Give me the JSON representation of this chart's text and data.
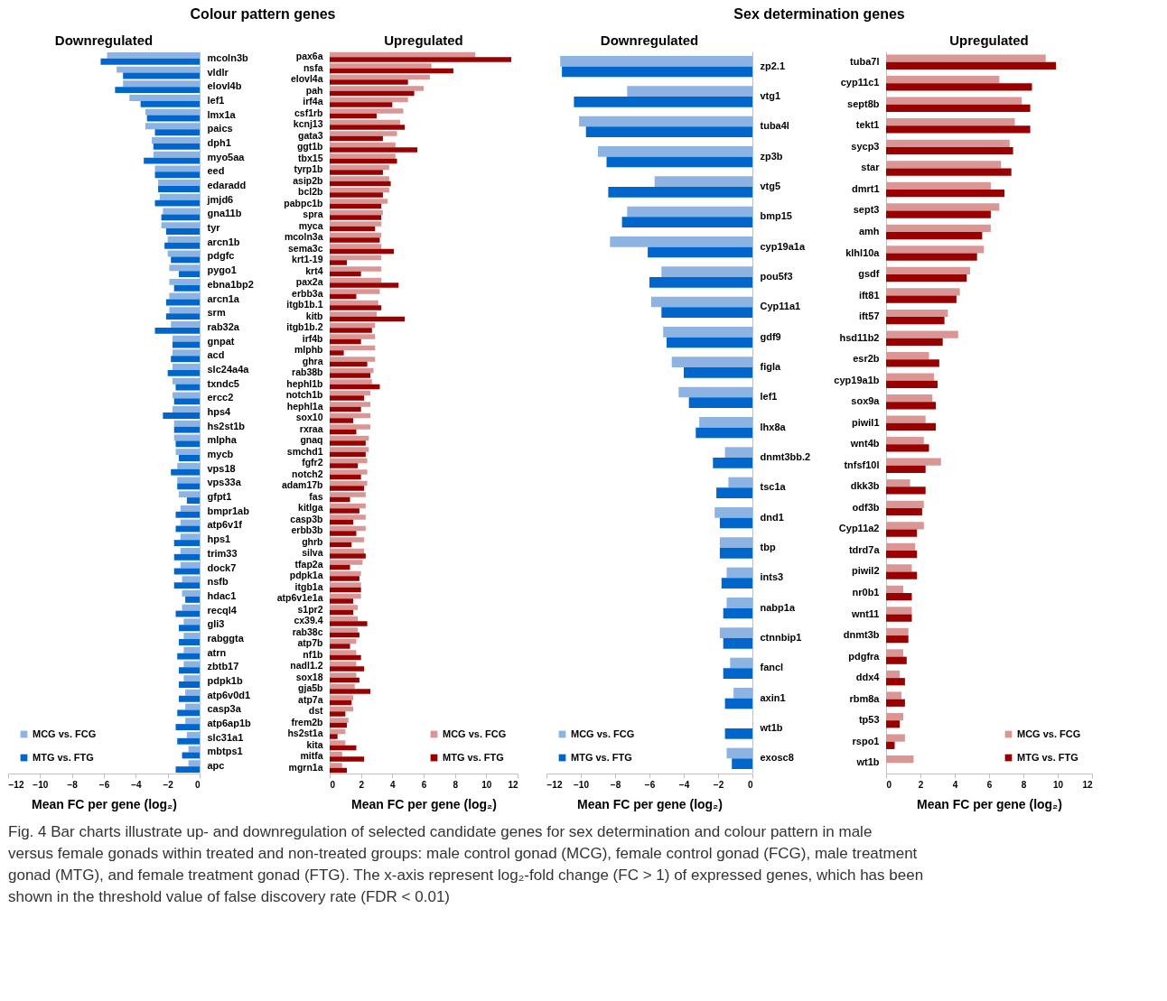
{
  "chart_data": [
    {
      "type": "bar",
      "orientation": "horizontal",
      "title": "Downregulated",
      "xlabel": "Mean FC per gene (log₂)",
      "annotations": [
        "Colour pattern genes"
      ],
      "legend": "bottom left",
      "xlim": [
        -12,
        0
      ],
      "xticks": [
        -12,
        -10,
        -8,
        -6,
        -4,
        -2,
        0
      ],
      "categories": [
        "mcoln3b",
        "vldlr",
        "elovl4b",
        "lef1",
        "lmx1a",
        "paics",
        "dph1",
        "myo5aa",
        "eed",
        "edaradd",
        "jmjd6",
        "gna11b",
        "tyr",
        "arcn1b",
        "pdgfc",
        "pygo1",
        "ebna1bp2",
        "arcn1a",
        "srm",
        "rab32a",
        "gnpat",
        "acd",
        "slc24a4a",
        "txndc5",
        "ercc2",
        "hps4",
        "hs2st1b",
        "mlpha",
        "mycb",
        "vps18",
        "vps33a",
        "gfpt1",
        "bmpr1ab",
        "atp6v1f",
        "hps1",
        "trim33",
        "dock7",
        "nsfb",
        "hdac1",
        "recql4",
        "gli3",
        "rabggta",
        "atrn",
        "zbtb17",
        "pdpk1b",
        "atp6v0d1",
        "casp3a",
        "atp6ap1b",
        "slc31a1",
        "mbtps1",
        "apc"
      ],
      "series": [
        {
          "name": "MCG vs. FCG",
          "color": "#8db3e2",
          "values": [
            -5.8,
            -5.2,
            -4.8,
            -4.4,
            -3.4,
            -3.4,
            -3.0,
            -2.9,
            -2.8,
            -2.6,
            -2.5,
            -2.3,
            -2.4,
            -2.0,
            -2.0,
            -1.9,
            -1.9,
            -1.9,
            -1.9,
            -1.8,
            -1.7,
            -1.7,
            -1.7,
            -1.7,
            -1.7,
            -1.7,
            -1.6,
            -1.6,
            -1.5,
            -1.4,
            -1.4,
            -1.3,
            -1.2,
            -1.2,
            -1.2,
            -1.2,
            -1.2,
            -1.1,
            -1.1,
            -1.1,
            -1.0,
            -1.0,
            -1.0,
            -1.0,
            -1.0,
            -0.9,
            -0.9,
            -0.9,
            -0.8,
            -0.7,
            -0.7
          ]
        },
        {
          "name": "MTG vs. FTG",
          "color": "#0066cc",
          "values": [
            -6.2,
            -4.8,
            -5.3,
            -3.7,
            -3.3,
            -2.8,
            -2.9,
            -3.5,
            -2.8,
            -2.6,
            -2.8,
            -2.4,
            -2.1,
            -2.2,
            -1.8,
            -1.3,
            -1.6,
            -2.1,
            -2.1,
            -2.8,
            -1.7,
            -1.8,
            -2.0,
            -1.5,
            -1.6,
            -2.3,
            -1.6,
            -1.5,
            -1.3,
            -1.8,
            -1.4,
            -0.8,
            -1.5,
            -1.5,
            -1.6,
            -1.6,
            -1.6,
            -1.6,
            -0.9,
            -1.5,
            -1.3,
            -1.3,
            -1.4,
            -1.3,
            -1.3,
            -1.3,
            -1.4,
            -1.5,
            -1.4,
            -1.1,
            -1.5
          ]
        }
      ]
    },
    {
      "type": "bar",
      "orientation": "horizontal",
      "title": "Upregulated",
      "xlabel": "Mean FC per gene (log₂)",
      "legend": "bottom right",
      "xlim": [
        0,
        12
      ],
      "xticks": [
        0,
        2,
        4,
        6,
        8,
        10,
        12
      ],
      "categories": [
        "pax6a",
        "nsfa",
        "elovl4a",
        "pah",
        "irf4a",
        "csf1rb",
        "kcnj13",
        "gata3",
        "ggt1b",
        "tbx15",
        "tyrp1b",
        "asip2b",
        "bcl2b",
        "pabpc1b",
        "spra",
        "myca",
        "mcoln3a",
        "sema3c",
        "krt1-19",
        "krt4",
        "pax2a",
        "erbb3a",
        "itgb1b.1",
        "kitb",
        "itgb1b.2",
        "irf4b",
        "mlphb",
        "ghra",
        "rab38b",
        "hephl1b",
        "notch1b",
        "hephl1a",
        "sox10",
        "rxraa",
        "gnaq",
        "smchd1",
        "fgfr2",
        "notch2",
        "adam17b",
        "fas",
        "kitlga",
        "casp3b",
        "erbb3b",
        "ghrb",
        "silva",
        "tfap2a",
        "pdpk1a",
        "itgb1a",
        "atp6v1e1a",
        "s1pr2",
        "cx39.4",
        "rab38c",
        "atp7b",
        "nf1b",
        "nadl1.2",
        "sox18",
        "gja5b",
        "atp7a",
        "dst",
        "frem2b",
        "hs2st1a",
        "kita",
        "mitfa",
        "mgrn1a"
      ],
      "series": [
        {
          "name": "MCG vs. FCG",
          "color": "#da9694",
          "values": [
            9.3,
            6.5,
            6.4,
            6.0,
            5.0,
            4.7,
            4.5,
            4.3,
            4.2,
            4.2,
            3.8,
            3.8,
            3.8,
            3.7,
            3.4,
            3.3,
            3.3,
            3.3,
            3.3,
            3.3,
            3.3,
            3.2,
            3.1,
            3.0,
            2.9,
            2.9,
            2.9,
            2.9,
            2.8,
            2.7,
            2.6,
            2.6,
            2.6,
            2.6,
            2.5,
            2.5,
            2.4,
            2.4,
            2.4,
            2.3,
            2.3,
            2.3,
            2.3,
            2.2,
            2.2,
            2.1,
            2.0,
            2.0,
            2.0,
            1.8,
            1.8,
            1.8,
            1.7,
            1.7,
            1.7,
            1.7,
            1.6,
            1.5,
            1.5,
            1.2,
            1.0,
            1.0,
            0.8,
            0.8
          ]
        },
        {
          "name": "MTG vs. FTG",
          "color": "#990000",
          "values": [
            11.6,
            7.9,
            5.0,
            5.4,
            4.0,
            3.0,
            4.8,
            3.4,
            5.6,
            4.3,
            3.4,
            3.9,
            3.4,
            3.3,
            3.3,
            2.9,
            3.2,
            4.1,
            1.1,
            2.0,
            4.4,
            1.7,
            3.3,
            4.8,
            2.7,
            2.0,
            0.9,
            2.4,
            2.6,
            3.2,
            2.2,
            2.0,
            1.5,
            1.7,
            2.3,
            2.3,
            1.8,
            2.0,
            2.2,
            1.3,
            1.9,
            1.5,
            1.7,
            1.4,
            2.3,
            1.3,
            1.9,
            2.0,
            1.5,
            1.5,
            2.4,
            1.9,
            1.3,
            2.0,
            2.2,
            1.9,
            2.6,
            1.4,
            1.0,
            1.1,
            0.5,
            1.7,
            2.2,
            1.1
          ]
        }
      ]
    },
    {
      "type": "bar",
      "orientation": "horizontal",
      "title": "Downregulated",
      "xlabel": "Mean FC per gene (log₂)",
      "annotations": [
        "Sex determination genes"
      ],
      "legend": "bottom left",
      "xlim": [
        -12,
        0
      ],
      "xticks": [
        -12,
        -10,
        -8,
        -6,
        -4,
        -2,
        0
      ],
      "categories": [
        "zp2.1",
        "vtg1",
        "tuba4l",
        "zp3b",
        "vtg5",
        "bmp15",
        "cyp19a1a",
        "pou5f3",
        "Cyp11a1",
        "gdf9",
        "figla",
        "lef1",
        "lhx8a",
        "dnmt3bb.2",
        "tsc1a",
        "dnd1",
        "tbp",
        "ints3",
        "nabp1a",
        "ctnnbip1",
        "fancl",
        "axin1",
        "wt1b",
        "exosc8"
      ],
      "series": [
        {
          "name": "MCG vs. FCG",
          "color": "#8db3e2",
          "values": [
            -11.2,
            -7.3,
            -10.1,
            -9.0,
            -5.7,
            -7.3,
            -8.3,
            -5.3,
            -5.9,
            -5.2,
            -4.7,
            -4.3,
            -3.1,
            -1.6,
            -1.4,
            -2.2,
            -1.9,
            -1.5,
            -1.5,
            -1.9,
            -1.3,
            -1.1,
            null,
            -1.5
          ]
        },
        {
          "name": "MTG vs. FTG",
          "color": "#0066cc",
          "values": [
            -11.1,
            -10.4,
            -9.7,
            -8.5,
            -8.4,
            -7.6,
            -6.1,
            -6.0,
            -5.3,
            -5.0,
            -4.0,
            -3.7,
            -3.3,
            -2.3,
            -2.1,
            -1.9,
            -1.9,
            -1.8,
            -1.7,
            -1.7,
            -1.7,
            -1.6,
            -1.6,
            -1.2
          ]
        }
      ]
    },
    {
      "type": "bar",
      "orientation": "horizontal",
      "title": "Upregulated",
      "xlabel": "Mean FC per gene (log₂)",
      "annotations": [
        "Fig. 4 Bar charts illustrate up- and downregulation of selected candidate genes for sex determination and colour pattern in male versus female gonads within treated and non-treated groups: male control gonad (MCG), female control gonad (FCG), male treatment gonad (MTG), and female treatment gonad (FTG). The x-axis represent log₂-fold change (FC > 1) of expressed genes, which has been shown in the threshold value of false discovery rate (FDR < 0.01)"
      ],
      "legend": "bottom right",
      "xlim": [
        0,
        12
      ],
      "xticks": [
        0,
        2,
        4,
        6,
        8,
        10,
        12
      ],
      "categories": [
        "tuba7l",
        "cyp11c1",
        "sept8b",
        "tekt1",
        "sycp3",
        "star",
        "dmrt1",
        "sept3",
        "amh",
        "klhl10a",
        "gsdf",
        "ift81",
        "ift57",
        "hsd11b2",
        "esr2b",
        "cyp19a1b",
        "sox9a",
        "piwil1",
        "wnt4b",
        "tnfsf10l",
        "dkk3b",
        "odf3b",
        "Cyp11a2",
        "tdrd7a",
        "piwil2",
        "nr0b1",
        "wnt11",
        "dnmt3b",
        "pdgfra",
        "ddx4",
        "rbm8a",
        "tp53",
        "rspo1",
        "wt1b"
      ],
      "series": [
        {
          "name": "MCG vs. FCG",
          "color": "#da9694",
          "values": [
            9.3,
            6.6,
            7.9,
            7.5,
            7.2,
            6.7,
            6.1,
            6.6,
            6.1,
            5.7,
            4.9,
            4.3,
            3.6,
            4.2,
            2.5,
            2.8,
            2.7,
            2.3,
            2.2,
            3.2,
            1.4,
            2.2,
            2.2,
            1.7,
            1.5,
            1.0,
            1.5,
            1.3,
            1.0,
            0.8,
            0.9,
            1.0,
            1.1,
            1.6
          ]
        },
        {
          "name": "MTG vs. FTG",
          "color": "#990000",
          "values": [
            9.9,
            8.5,
            8.4,
            8.4,
            7.4,
            7.3,
            6.9,
            6.1,
            5.6,
            5.3,
            4.7,
            4.1,
            3.4,
            3.3,
            3.1,
            3.0,
            2.9,
            2.9,
            2.5,
            2.3,
            2.3,
            2.1,
            1.8,
            1.8,
            1.8,
            1.5,
            1.5,
            1.3,
            1.2,
            1.1,
            1.1,
            0.8,
            0.5,
            null
          ]
        }
      ]
    }
  ]
}
